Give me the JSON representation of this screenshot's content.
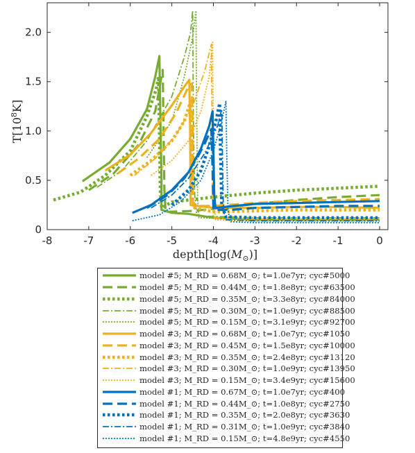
{
  "chart_data": {
    "type": "line",
    "xlabel": "depth[log(M_⊙)]",
    "ylabel": "T[10^8K]",
    "xlim": [
      -8,
      0.2
    ],
    "ylim": [
      0,
      2.3
    ],
    "x_ticks": [
      -8,
      -7,
      -6,
      -5,
      -4,
      -3,
      -2,
      -1,
      0
    ],
    "y_ticks": [
      0,
      0.5,
      1.0,
      1.5,
      2.0
    ],
    "x_tick_labels": [
      "-8",
      "-7",
      "-6",
      "-5",
      "-4",
      "-3",
      "-2",
      "-1",
      "0"
    ],
    "y_tick_labels": [
      "0",
      "0.5",
      "1.0",
      "1.5",
      "2.0"
    ],
    "grid": false,
    "legend_placement": "below",
    "colors": {
      "model5": "#77AC30",
      "model3": "#EDB120",
      "model1": "#0072BD"
    },
    "series": [
      {
        "name": "model #5; M_RD = 0.68M_⊙; t=1.0e7yr; cyc#5000",
        "color": "#77AC30",
        "style": "solid",
        "points": [
          [
            -7.15,
            0.49
          ],
          [
            -6.5,
            0.68
          ],
          [
            -6.0,
            0.92
          ],
          [
            -5.6,
            1.22
          ],
          [
            -5.4,
            1.55
          ],
          [
            -5.3,
            1.76
          ],
          [
            -5.28,
            1.2
          ],
          [
            -5.25,
            0.5
          ],
          [
            -5.25,
            0.2
          ],
          [
            -5.0,
            0.17
          ],
          [
            -4.6,
            0.16
          ],
          [
            -4.0,
            0.12
          ],
          [
            -3.0,
            0.1
          ],
          [
            -1.0,
            0.1
          ],
          [
            0,
            0.1
          ]
        ]
      },
      {
        "name": "model #5; M_RD = 0.44M_⊙; t=1.8e8yr; cyc#63500",
        "color": "#77AC30",
        "style": "dashed",
        "points": [
          [
            -7.0,
            0.4
          ],
          [
            -6.4,
            0.57
          ],
          [
            -5.8,
            0.86
          ],
          [
            -5.4,
            1.2
          ],
          [
            -5.22,
            1.62
          ],
          [
            -5.2,
            1.0
          ],
          [
            -5.18,
            0.4
          ],
          [
            -5.15,
            0.18
          ],
          [
            -4.5,
            0.19
          ],
          [
            -4.0,
            0.21
          ],
          [
            -3.0,
            0.26
          ],
          [
            -2.0,
            0.3
          ],
          [
            -1.0,
            0.33
          ],
          [
            0,
            0.35
          ]
        ]
      },
      {
        "name": "model #5; M_RD = 0.35M_⊙; t=3.3e8yr; cyc#84000",
        "color": "#77AC30",
        "style": "dotted",
        "points": [
          [
            -7.85,
            0.3
          ],
          [
            -7.2,
            0.38
          ],
          [
            -6.6,
            0.55
          ],
          [
            -6.0,
            0.8
          ],
          [
            -5.6,
            1.15
          ],
          [
            -5.38,
            1.42
          ],
          [
            -5.32,
            1.55
          ],
          [
            -5.3,
            1.0
          ],
          [
            -5.28,
            0.4
          ],
          [
            -5.25,
            0.22
          ],
          [
            -5.0,
            0.28
          ],
          [
            -4.0,
            0.33
          ],
          [
            -3.0,
            0.37
          ],
          [
            -2.0,
            0.4
          ],
          [
            -1.0,
            0.42
          ],
          [
            0,
            0.44
          ]
        ]
      },
      {
        "name": "model #5; M_RD = 0.30M_⊙; t=1.0e9yr; cyc#88500",
        "color": "#77AC30",
        "style": "dashdot",
        "points": [
          [
            -6.8,
            0.43
          ],
          [
            -6.2,
            0.6
          ],
          [
            -5.6,
            0.9
          ],
          [
            -5.0,
            1.35
          ],
          [
            -4.7,
            1.75
          ],
          [
            -4.55,
            2.0
          ],
          [
            -4.5,
            2.22
          ],
          [
            -4.48,
            1.0
          ],
          [
            -4.45,
            0.35
          ],
          [
            -4.4,
            0.14
          ],
          [
            -3.0,
            0.12
          ],
          [
            0,
            0.12
          ]
        ]
      },
      {
        "name": "model #5; M_RD = 0.15M_⊙; t=3.1e9yr; cyc#92700",
        "color": "#77AC30",
        "style": "dotted-thin",
        "points": [
          [
            -5.6,
            0.73
          ],
          [
            -5.0,
            1.1
          ],
          [
            -4.7,
            1.55
          ],
          [
            -4.5,
            1.95
          ],
          [
            -4.42,
            2.22
          ],
          [
            -4.4,
            1.0
          ],
          [
            -4.38,
            0.3
          ],
          [
            -4.35,
            0.12
          ],
          [
            -3.0,
            0.1
          ],
          [
            0,
            0.1
          ]
        ]
      },
      {
        "name": "model #3; M_RD = 0.68M_⊙; t=1.0e7yr; cyc#1050",
        "color": "#EDB120",
        "style": "solid",
        "points": [
          [
            -6.6,
            0.6
          ],
          [
            -6.0,
            0.76
          ],
          [
            -5.5,
            0.98
          ],
          [
            -5.0,
            1.26
          ],
          [
            -4.7,
            1.45
          ],
          [
            -4.58,
            1.52
          ],
          [
            -4.56,
            1.0
          ],
          [
            -4.55,
            0.4
          ],
          [
            -4.55,
            0.25
          ],
          [
            -4.0,
            0.22
          ],
          [
            -3.0,
            0.22
          ],
          [
            -2.0,
            0.23
          ],
          [
            -1.0,
            0.23
          ],
          [
            0,
            0.22
          ]
        ]
      },
      {
        "name": "model #3; M_RD = 0.45M_⊙; t=1.5e8yr; cyc#10000",
        "color": "#EDB120",
        "style": "dashed",
        "points": [
          [
            -6.3,
            0.57
          ],
          [
            -5.8,
            0.72
          ],
          [
            -5.3,
            0.92
          ],
          [
            -4.9,
            1.18
          ],
          [
            -4.6,
            1.45
          ],
          [
            -4.52,
            1.48
          ],
          [
            -4.5,
            1.0
          ],
          [
            -4.5,
            0.3
          ],
          [
            -4.48,
            0.24
          ],
          [
            -4.0,
            0.24
          ],
          [
            -3.0,
            0.27
          ],
          [
            -2.0,
            0.29
          ],
          [
            -1.0,
            0.3
          ],
          [
            0,
            0.31
          ]
        ]
      },
      {
        "name": "model #3; M_RD = 0.35M_⊙; t=2.4e8yr; cyc#13120",
        "color": "#EDB120",
        "style": "dotted",
        "points": [
          [
            -6.0,
            0.55
          ],
          [
            -5.5,
            0.7
          ],
          [
            -5.0,
            0.9
          ],
          [
            -4.7,
            1.1
          ],
          [
            -4.55,
            1.3
          ],
          [
            -4.52,
            0.8
          ],
          [
            -4.5,
            0.3
          ],
          [
            -4.45,
            0.22
          ],
          [
            -4.0,
            0.18
          ],
          [
            -3.0,
            0.19
          ],
          [
            -2.0,
            0.2
          ],
          [
            -1.0,
            0.2
          ],
          [
            0,
            0.2
          ]
        ]
      },
      {
        "name": "model #3; M_RD = 0.30M_⊙; t=1.0e9yr; cyc#13950",
        "color": "#EDB120",
        "style": "dashdot",
        "points": [
          [
            -5.9,
            0.55
          ],
          [
            -5.4,
            0.72
          ],
          [
            -4.9,
            0.96
          ],
          [
            -4.5,
            1.25
          ],
          [
            -4.2,
            1.62
          ],
          [
            -4.05,
            1.88
          ],
          [
            -4.03,
            1.0
          ],
          [
            -4.02,
            0.3
          ],
          [
            -4.0,
            0.12
          ],
          [
            -3.0,
            0.1
          ],
          [
            0,
            0.1
          ]
        ]
      },
      {
        "name": "model #3; M_RD = 0.15M_⊙; t=3.4e9yr; cyc#15600",
        "color": "#EDB120",
        "style": "dotted-thin",
        "points": [
          [
            -5.5,
            0.55
          ],
          [
            -5.0,
            0.7
          ],
          [
            -4.6,
            0.9
          ],
          [
            -4.3,
            1.2
          ],
          [
            -4.1,
            1.55
          ],
          [
            -4.02,
            1.9
          ],
          [
            -4.0,
            1.0
          ],
          [
            -3.98,
            0.3
          ],
          [
            -3.95,
            0.1
          ],
          [
            -3.0,
            0.08
          ],
          [
            0,
            0.08
          ]
        ]
      },
      {
        "name": "model #1; M_RD = 0.67M_⊙; t=1.0e7yr; cyc#400",
        "color": "#0072BD",
        "style": "solid",
        "points": [
          [
            -5.95,
            0.17
          ],
          [
            -5.5,
            0.25
          ],
          [
            -5.0,
            0.4
          ],
          [
            -4.6,
            0.58
          ],
          [
            -4.3,
            0.82
          ],
          [
            -4.1,
            1.05
          ],
          [
            -4.02,
            1.2
          ],
          [
            -4.0,
            0.8
          ],
          [
            -3.98,
            0.35
          ],
          [
            -3.95,
            0.22
          ],
          [
            -3.5,
            0.24
          ],
          [
            -3.0,
            0.26
          ],
          [
            -2.0,
            0.27
          ],
          [
            -1.0,
            0.28
          ],
          [
            0,
            0.29
          ]
        ]
      },
      {
        "name": "model #1; M_RD = 0.44M_⊙; t=1.0e8yr; cyc#2750",
        "color": "#0072BD",
        "style": "dashed",
        "points": [
          [
            -5.6,
            0.22
          ],
          [
            -5.1,
            0.35
          ],
          [
            -4.7,
            0.52
          ],
          [
            -4.4,
            0.72
          ],
          [
            -4.2,
            0.88
          ],
          [
            -4.05,
            1.02
          ],
          [
            -4.02,
            0.6
          ],
          [
            -4.0,
            0.2
          ],
          [
            -3.6,
            0.2
          ],
          [
            -3.0,
            0.22
          ],
          [
            -2.0,
            0.23
          ],
          [
            -1.0,
            0.24
          ],
          [
            0,
            0.24
          ]
        ]
      },
      {
        "name": "model #1; M_RD = 0.35M_⊙; t=2.0e8yr; cyc#3630",
        "color": "#0072BD",
        "style": "dotted",
        "points": [
          [
            -5.0,
            0.25
          ],
          [
            -4.6,
            0.4
          ],
          [
            -4.3,
            0.6
          ],
          [
            -4.1,
            0.85
          ],
          [
            -3.95,
            1.08
          ],
          [
            -3.85,
            1.28
          ],
          [
            -3.83,
            0.8
          ],
          [
            -3.8,
            0.25
          ],
          [
            -3.7,
            0.13
          ],
          [
            -3.0,
            0.12
          ],
          [
            -2.0,
            0.12
          ],
          [
            -1.0,
            0.12
          ],
          [
            0,
            0.12
          ]
        ]
      },
      {
        "name": "model #1; M_RD = 0.31M_⊙; t=1.0e9yr; cyc#3840",
        "color": "#0072BD",
        "style": "dashdot",
        "points": [
          [
            -5.5,
            0.22
          ],
          [
            -5.0,
            0.35
          ],
          [
            -4.6,
            0.52
          ],
          [
            -4.2,
            0.78
          ],
          [
            -3.9,
            1.05
          ],
          [
            -3.8,
            1.22
          ],
          [
            -3.78,
            0.7
          ],
          [
            -3.76,
            0.2
          ],
          [
            -3.7,
            0.1
          ],
          [
            -3.0,
            0.09
          ],
          [
            0,
            0.09
          ]
        ]
      },
      {
        "name": "model #1; M_RD = 0.15M_⊙; t=4.8e9yr; cyc#4550",
        "color": "#0072BD",
        "style": "dotted-thin",
        "points": [
          [
            -5.95,
            0.09
          ],
          [
            -5.3,
            0.15
          ],
          [
            -4.8,
            0.28
          ],
          [
            -4.3,
            0.5
          ],
          [
            -4.0,
            0.8
          ],
          [
            -3.8,
            1.1
          ],
          [
            -3.7,
            1.3
          ],
          [
            -3.68,
            0.8
          ],
          [
            -3.65,
            0.2
          ],
          [
            -3.6,
            0.08
          ],
          [
            -3.0,
            0.07
          ],
          [
            0,
            0.07
          ]
        ]
      }
    ]
  },
  "axis_labels": {
    "x_main": "depth",
    "x_bracket_open": "[log(",
    "x_M": "M",
    "x_sub": "⊙",
    "x_bracket_close": ")]",
    "y_main": "T",
    "y_bracket_open": "[10",
    "y_exp": "8",
    "y_unit": "K]"
  }
}
